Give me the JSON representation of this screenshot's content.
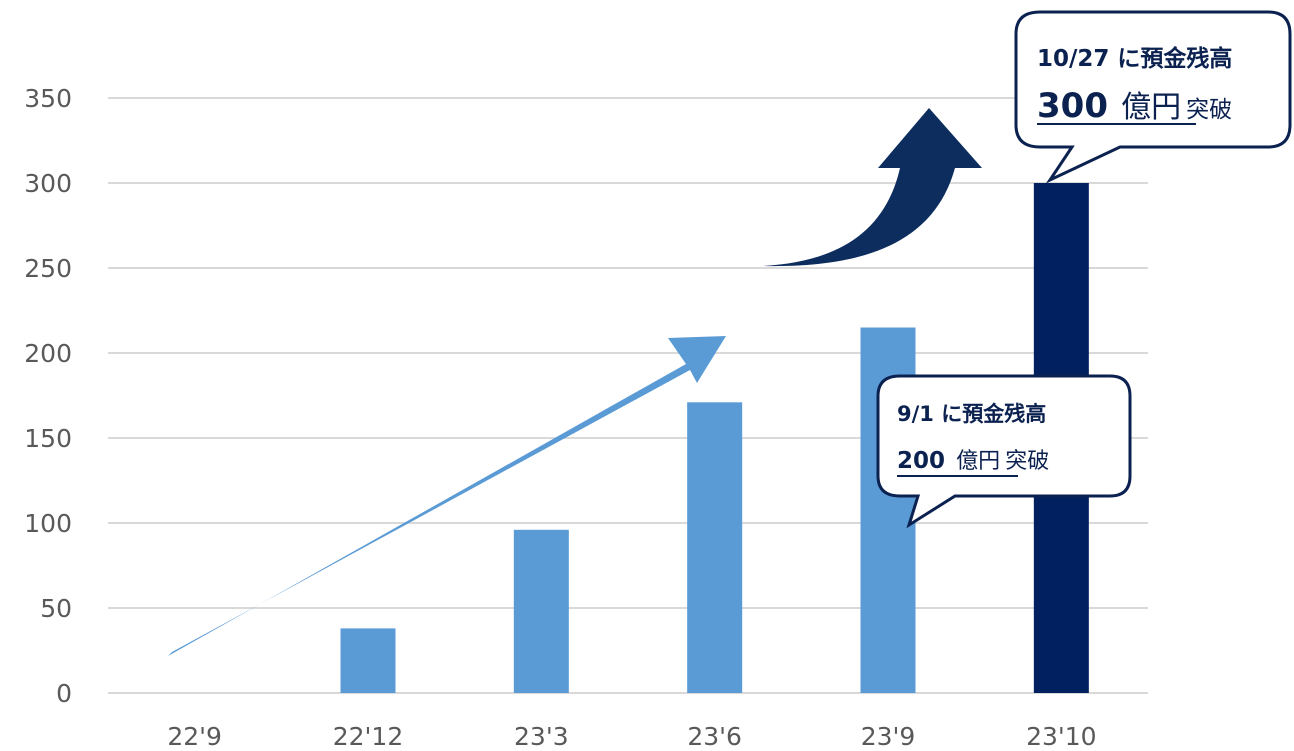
{
  "chart_data": {
    "type": "bar",
    "categories": [
      "22'9",
      "22'12",
      "23'3",
      "23'6",
      "23'9",
      "23'10"
    ],
    "values": [
      0,
      38,
      96,
      171,
      215,
      300
    ],
    "y_ticks": [
      0,
      50,
      100,
      150,
      200,
      250,
      300,
      350
    ],
    "ylim": [
      0,
      350
    ],
    "title": "",
    "xlabel": "",
    "ylabel": "",
    "grid": true,
    "legend": "none",
    "colors": {
      "bar": "#5b9bd5",
      "bar_highlight": "#002060",
      "gridline": "#d9d9d9",
      "tick_text": "#595959",
      "arrow_light": "#5b9bd5",
      "arrow_dark": "#0c2d5e",
      "callout_border": "#0b2150",
      "callout_text": "#0b2150"
    },
    "highlight_index": 5
  },
  "callouts": [
    {
      "target_category": "23'10",
      "line1": "10/27 に預金残高",
      "amount": "300",
      "unit": "億円",
      "suffix": "突破"
    },
    {
      "target_category": "23'9",
      "line1": "9/1 に預金残高",
      "amount": "200",
      "unit": "億円",
      "suffix": "突破"
    }
  ]
}
